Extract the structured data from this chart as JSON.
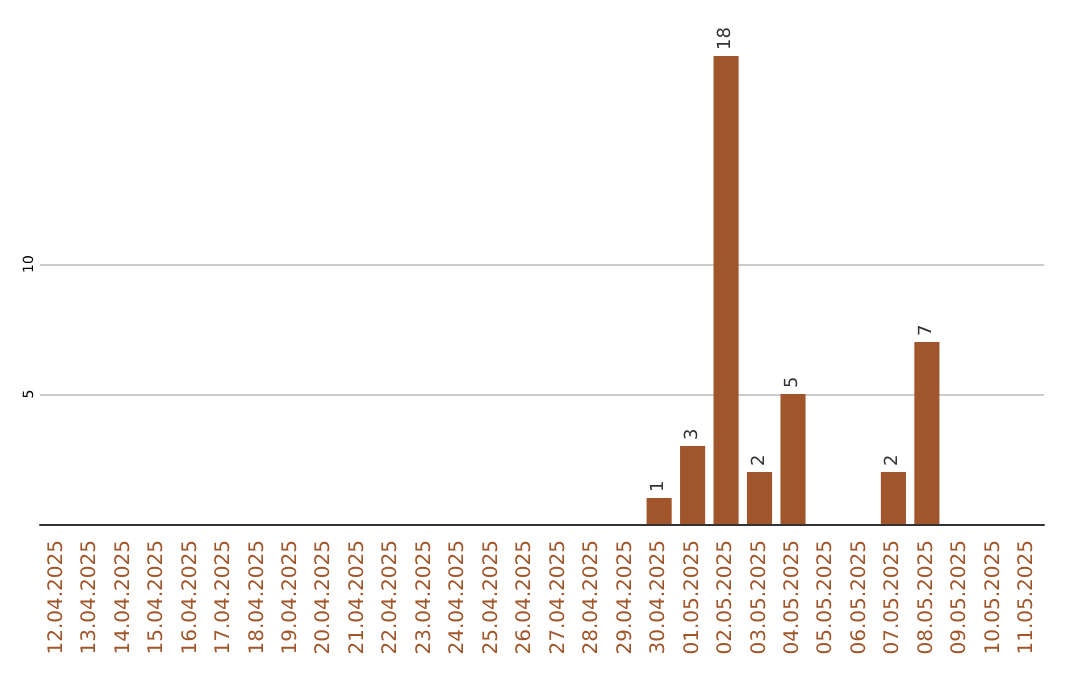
{
  "chart_data": {
    "type": "bar",
    "categories": [
      "12.04.2025",
      "13.04.2025",
      "14.04.2025",
      "15.04.2025",
      "16.04.2025",
      "17.04.2025",
      "18.04.2025",
      "19.04.2025",
      "20.04.2025",
      "21.04.2025",
      "22.04.2025",
      "23.04.2025",
      "24.04.2025",
      "25.04.2025",
      "26.04.2025",
      "27.04.2025",
      "28.04.2025",
      "29.04.2025",
      "30.04.2025",
      "01.05.2025",
      "02.05.2025",
      "03.05.2025",
      "04.05.2025",
      "05.05.2025",
      "06.05.2025",
      "07.05.2025",
      "08.05.2025",
      "09.05.2025",
      "10.05.2025",
      "11.05.2025"
    ],
    "values": [
      0,
      0,
      0,
      0,
      0,
      0,
      0,
      0,
      0,
      0,
      0,
      0,
      0,
      0,
      0,
      0,
      0,
      0,
      1,
      3,
      18,
      2,
      5,
      0,
      0,
      2,
      7,
      0,
      0,
      0
    ],
    "value_labels": [
      null,
      null,
      null,
      null,
      null,
      null,
      null,
      null,
      null,
      null,
      null,
      null,
      null,
      null,
      null,
      null,
      null,
      null,
      "1",
      "3",
      "18",
      "2",
      "5",
      null,
      null,
      "2",
      "7",
      null,
      null,
      null
    ],
    "color": "#a0562a",
    "ylim": [
      0,
      18
    ],
    "yticks": [
      5,
      10
    ],
    "grid": "y"
  }
}
